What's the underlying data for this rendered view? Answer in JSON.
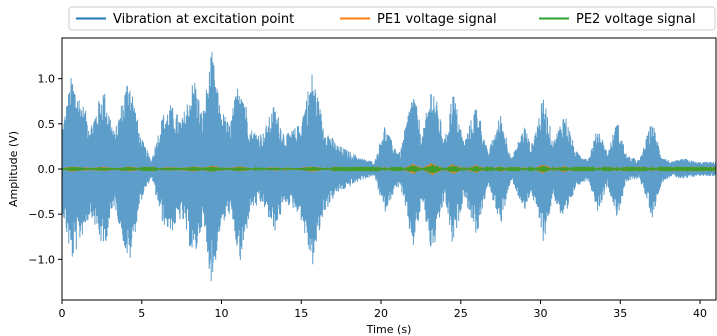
{
  "chart_data": {
    "type": "line",
    "title": "",
    "xlabel": "Time (s)",
    "ylabel": "Amplitude (V)",
    "xlim": [
      0,
      41
    ],
    "ylim": [
      -1.45,
      1.45
    ],
    "xticks": [
      0,
      5,
      10,
      15,
      20,
      25,
      30,
      35,
      40
    ],
    "yticks": [
      -1.0,
      -0.5,
      0.0,
      0.5,
      1.0
    ],
    "xtick_labels": [
      "0",
      "5",
      "10",
      "15",
      "20",
      "25",
      "30",
      "35",
      "40"
    ],
    "ytick_labels": [
      "−1.0",
      "−0.5",
      "0.0",
      "0.5",
      "1.0"
    ],
    "grid": false,
    "legend_position": "top-right",
    "series": [
      {
        "name": "Vibration at excitation point",
        "color": "#1f77b4",
        "envelope_t": [
          0,
          0.6,
          1.8,
          2.6,
          3.3,
          4.2,
          4.9,
          5.6,
          6.3,
          6.8,
          7.5,
          8.3,
          8.8,
          9.4,
          9.9,
          10.5,
          11.2,
          11.8,
          12.6,
          13.3,
          14.0,
          14.9,
          15.7,
          16.4,
          17.2,
          18.0,
          18.8,
          19.6,
          20.2,
          20.7,
          21.2,
          22.0,
          22.6,
          23.2,
          24.0,
          24.5,
          25.2,
          26.0,
          26.7,
          27.5,
          28.2,
          29.0,
          29.4,
          30.2,
          30.8,
          31.5,
          32.2,
          33.0,
          33.6,
          34.2,
          34.8,
          35.4,
          36.2,
          37.0,
          37.6,
          38.2,
          39.0,
          39.8,
          41.0
        ],
        "envelope_amp": [
          0.45,
          1.05,
          0.5,
          0.92,
          0.4,
          1.1,
          0.38,
          0.1,
          0.6,
          0.72,
          0.55,
          1.05,
          0.6,
          1.32,
          0.7,
          0.5,
          1.1,
          0.45,
          0.4,
          0.72,
          0.38,
          0.5,
          1.1,
          0.5,
          0.28,
          0.2,
          0.12,
          0.08,
          0.5,
          0.3,
          0.18,
          0.9,
          0.38,
          1.0,
          0.32,
          0.9,
          0.3,
          0.75,
          0.18,
          0.62,
          0.12,
          0.5,
          0.25,
          0.82,
          0.3,
          0.65,
          0.2,
          0.12,
          0.48,
          0.18,
          0.55,
          0.15,
          0.1,
          0.55,
          0.15,
          0.08,
          0.12,
          0.08,
          0.08
        ]
      },
      {
        "name": "PE1 voltage signal",
        "color": "#ff7f0e"
      },
      {
        "name": "PE2 voltage signal",
        "color": "#2ca02c"
      }
    ]
  }
}
